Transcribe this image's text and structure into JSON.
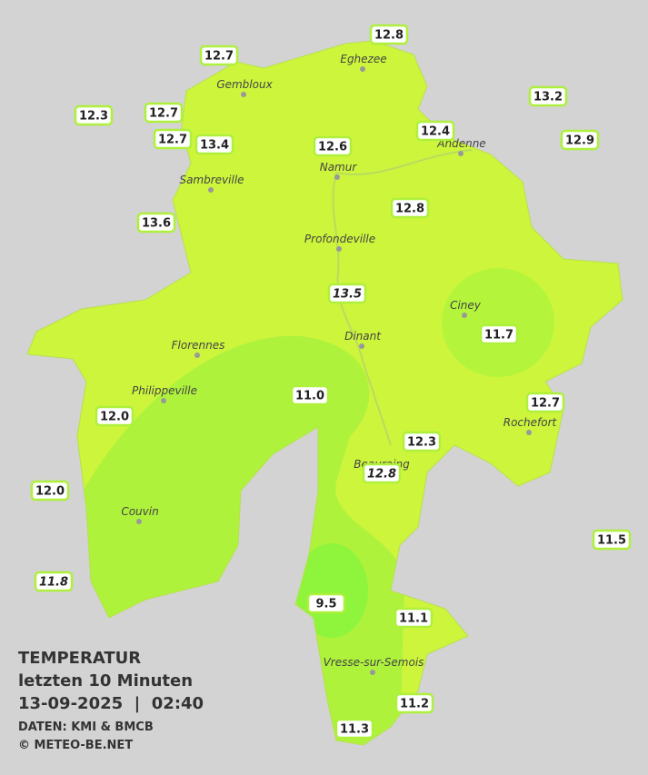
{
  "legend": {
    "title": "TEMPERATUR",
    "subtitle": "letzten 10 Minuten",
    "timestamp": "13-09-2025  |  02:40",
    "source": "DATEN: KMI & BMCB",
    "copyright": "© METEO-BE.NET"
  },
  "cities": [
    "Eghezee",
    "Gembloux",
    "Andenne",
    "Namur",
    "Sambreville",
    "Profondeville",
    "Ciney",
    "Florennes",
    "Dinant",
    "Philippeville",
    "Rochefort",
    "Beauraing",
    "Couvin",
    "Vresse-sur-Semois"
  ],
  "stations": [
    "12.8",
    "12.7",
    "13.2",
    "12.3",
    "12.7",
    "12.7",
    "13.4",
    "12.6",
    "12.4",
    "12.9",
    "12.8",
    "13.6",
    "13.5",
    "11.7",
    "11.0",
    "12.7",
    "12.0",
    "12.3",
    "12.8",
    "12.0",
    "11.5",
    "11.8",
    "9.5",
    "11.1",
    "11.2",
    "11.3"
  ]
}
